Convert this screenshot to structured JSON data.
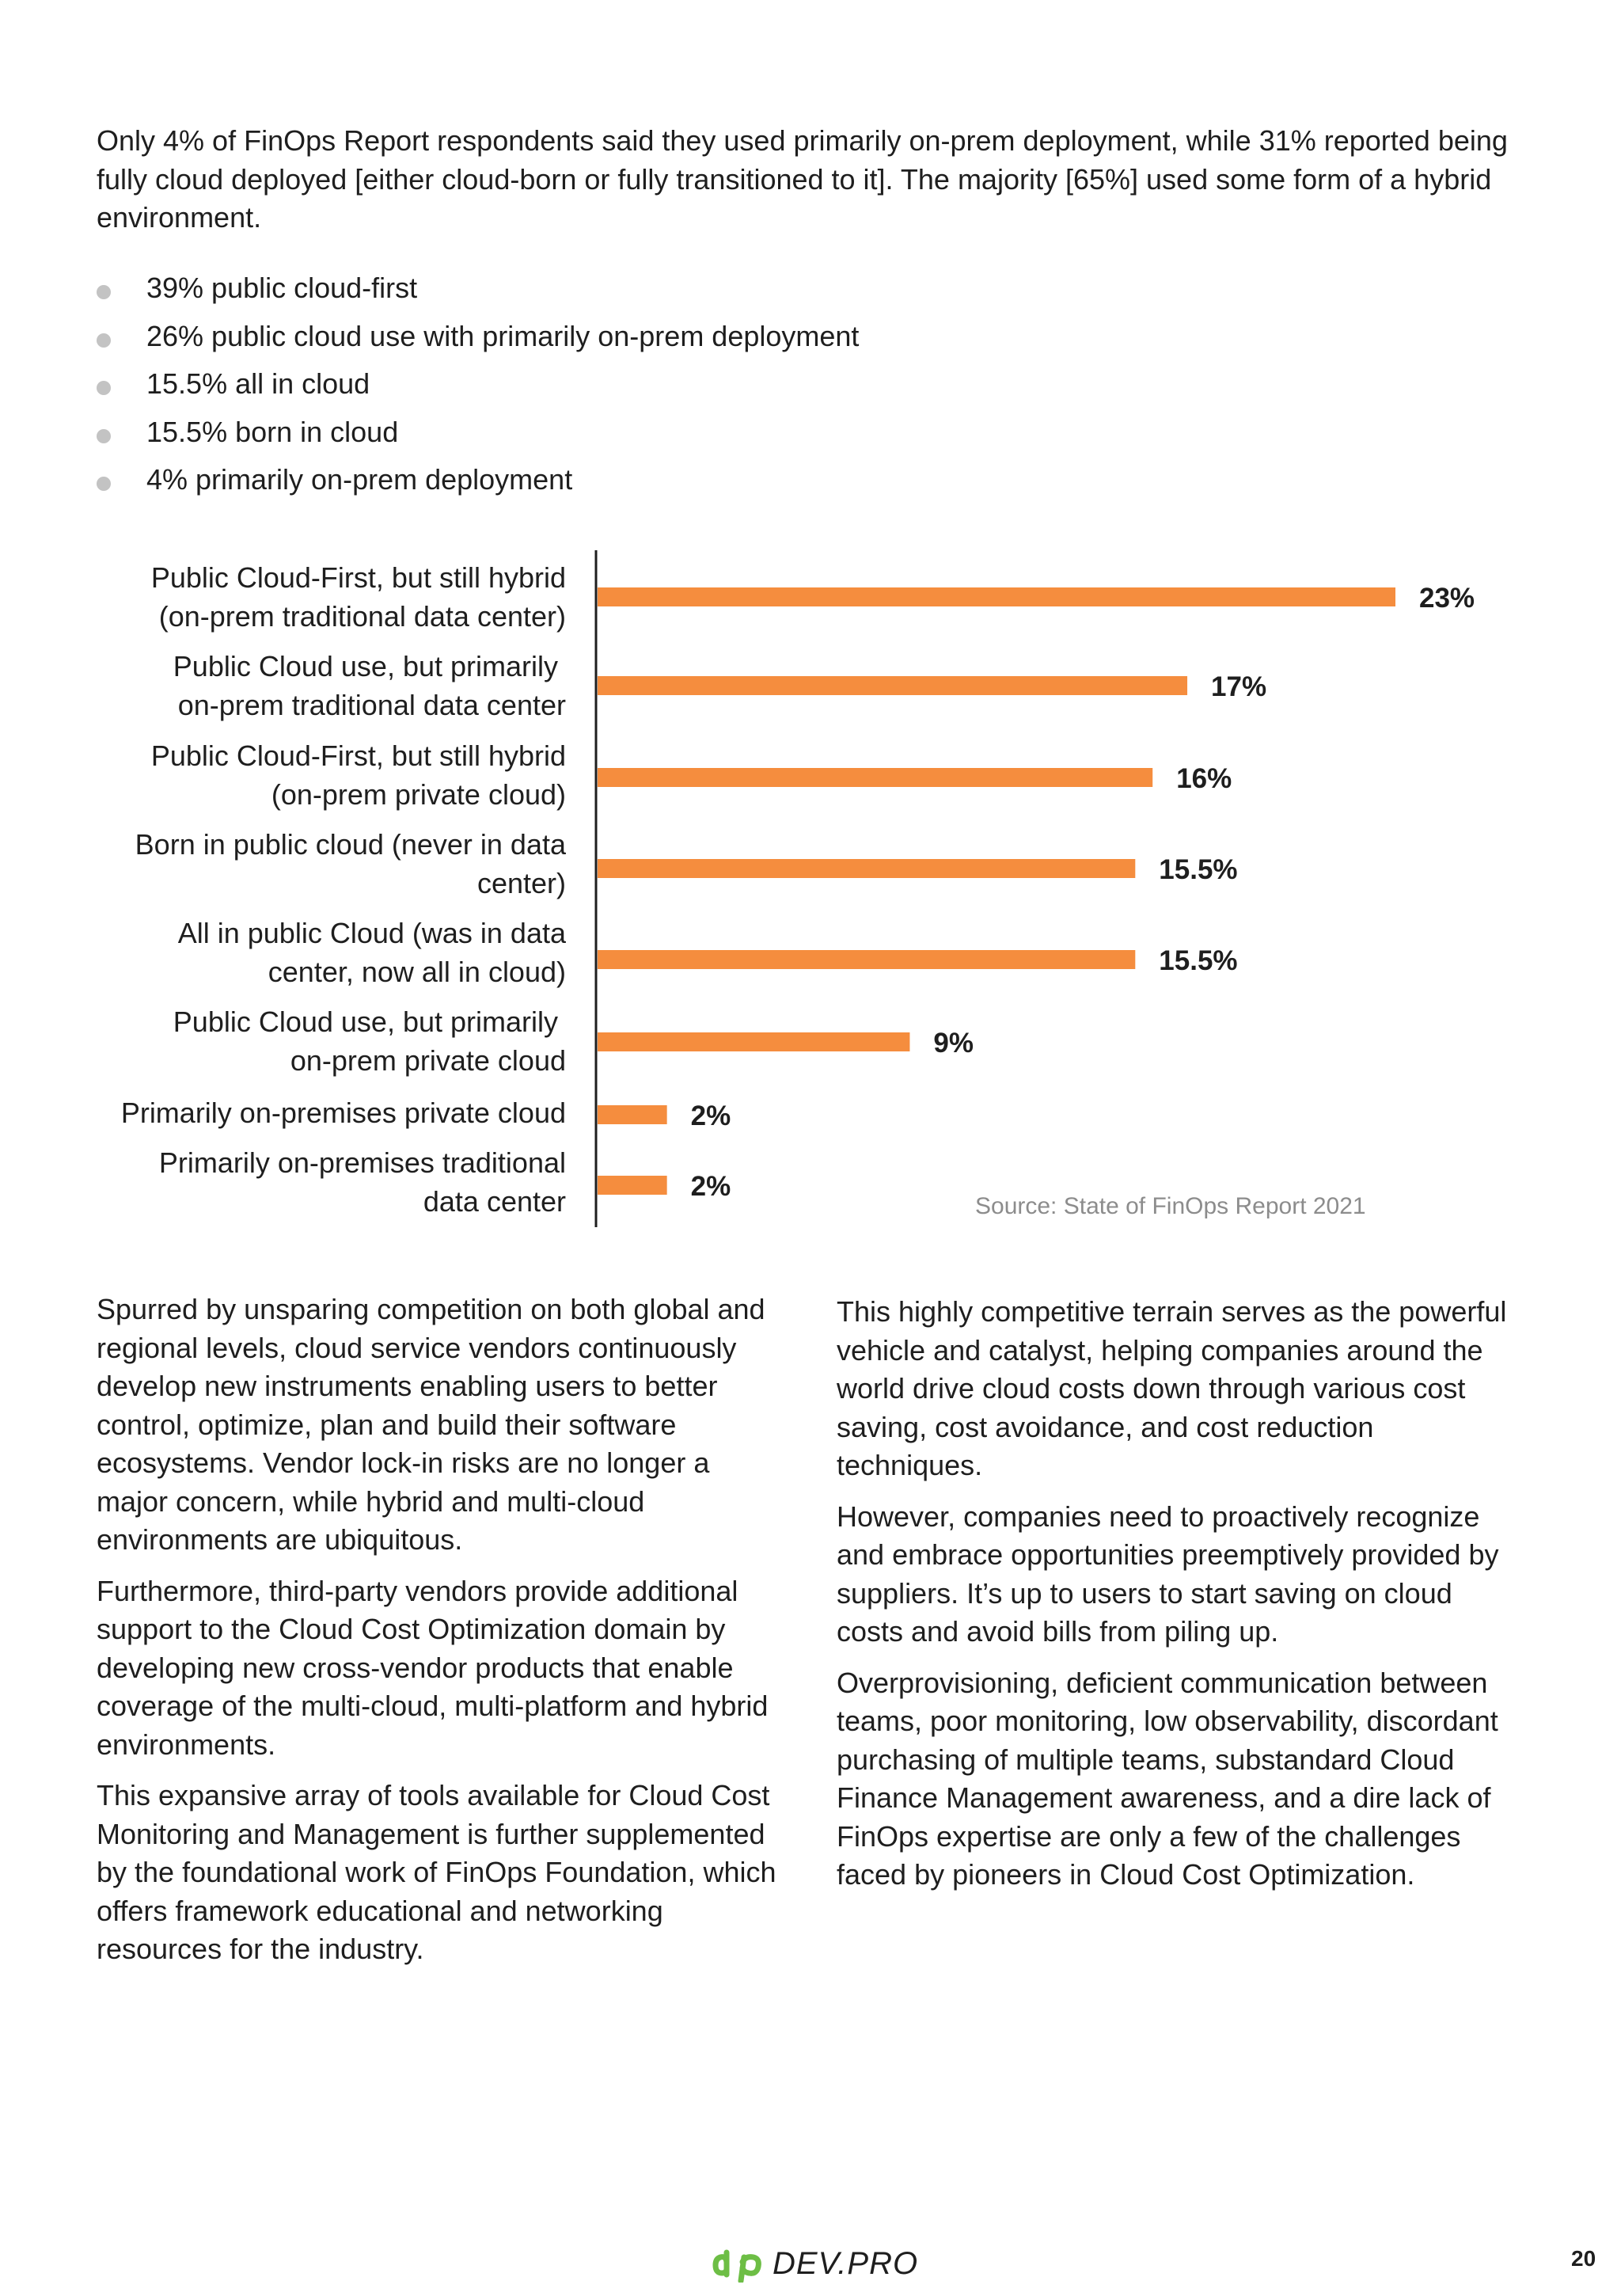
{
  "intro": "Only 4% of FinOps Report respondents said they used  primarily on-prem deployment, while 31% reported being fully cloud deployed [either cloud-born or fully transitioned to it]. The majority [65%]  used some form of a hybrid environment.",
  "bullets": [
    "39% public cloud-first",
    "26% public cloud use with primarily on-prem deployment",
    "15.5% all in cloud",
    "15.5% born in cloud",
    "4% primarily on-prem deployment"
  ],
  "chart_data": {
    "type": "bar",
    "orientation": "horizontal",
    "categories": [
      [
        "Public Cloud-First, but still hybrid",
        "(on-prem traditional data center)"
      ],
      [
        "Public Cloud use, but primarily ",
        "on-prem traditional data center"
      ],
      [
        "Public Cloud-First, but still hybrid",
        "(on-prem private cloud)"
      ],
      [
        "Born in public cloud (never in data",
        "center)"
      ],
      [
        "All in public Cloud (was in data",
        "center, now all in cloud)"
      ],
      [
        "Public Cloud use, but primarily ",
        "on-prem private cloud"
      ],
      [
        "Primarily on-premises private cloud"
      ],
      [
        "Primarily on-premises traditional",
        "data center"
      ]
    ],
    "values": [
      23,
      17,
      16,
      15.5,
      15.5,
      9,
      2,
      2
    ],
    "value_labels": [
      "23%",
      "17%",
      "16%",
      "15.5%",
      "15.5%",
      "9%",
      "2%",
      "2%"
    ],
    "xlim": [
      0,
      23
    ],
    "bar_color": "#F58D3E",
    "grid": false,
    "source": "Source: State of FinOps Report 2021"
  },
  "columns": {
    "left": [
      "Spurred by unsparing competition on both global and regional levels, cloud service vendors continuously develop new instruments enabling users to better control, optimize, plan and build their software ecosystems. Vendor lock-in risks are no longer a major concern, while hybrid and multi-cloud environments are ubiquitous.",
      "Furthermore, third-party vendors provide additional support to the Cloud Cost Optimization domain by developing new cross-vendor products that enable coverage of the multi-cloud, multi-platform and hybrid environments.",
      "This expansive array of tools available for Cloud Cost Monitoring and Management is further supplemented by the foundational work of FinOps Foundation, which offers framework educational and networking resources for the industry."
    ],
    "right": [
      "This highly competitive terrain serves as the powerful vehicle and catalyst, helping companies around the world drive cloud costs down through various cost saving, cost avoidance, and cost reduction techniques.",
      "However, companies need to proactively recognize and embrace opportunities preemptively provided by suppliers. It’s up to users to start saving on cloud costs and avoid bills from piling up.",
      "Overprovisioning, deficient communication between teams, poor monitoring, low observability, discordant purchasing of multiple teams, substandard Cloud Finance Management awareness, and a dire lack of FinOps expertise are only a few of the challenges faced by pioneers in Cloud Cost Optimization."
    ]
  },
  "footer": {
    "logo_text": "DEV.PRO",
    "logo_color": "#6DBE45",
    "page_number": "20"
  }
}
